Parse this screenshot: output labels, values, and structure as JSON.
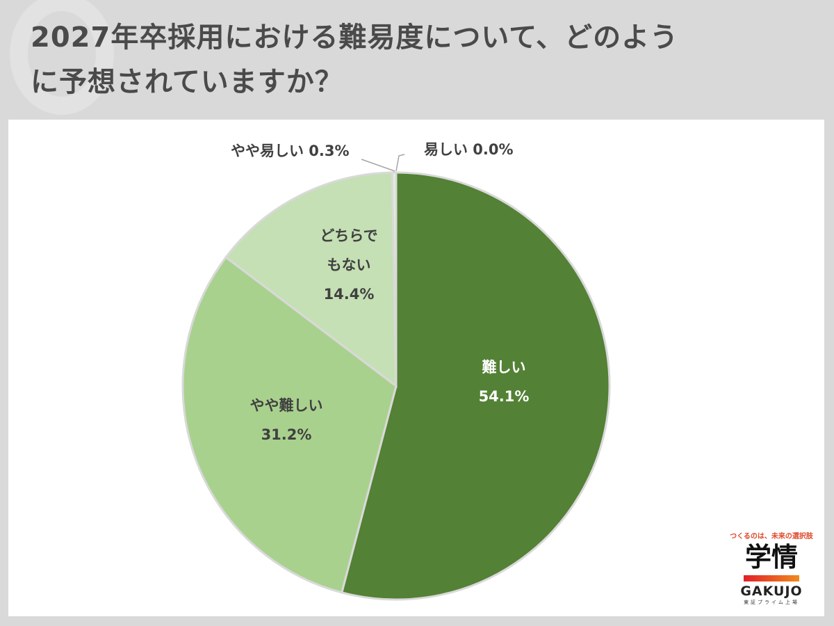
{
  "header": {
    "title_line1": "2027年卒採用における難易度について、どのよう",
    "title_line2": "に予想されていますか？"
  },
  "logo": {
    "tagline": "つくるのは、未来の選択肢",
    "kanji": "学情",
    "name": "GAKUJO",
    "sub": "東証プライム上場",
    "bar_colors": [
      "#e0202a",
      "#f08a1c"
    ]
  },
  "chart_data": {
    "type": "pie",
    "title": "2027年卒採用における難易度について、どのように予想されていますか？",
    "start_angle_deg": 0,
    "direction": "clockwise",
    "slices": [
      {
        "label": "難しい",
        "value": 54.1,
        "display": "54.1%",
        "color": "#538135"
      },
      {
        "label": "やや難しい",
        "value": 31.2,
        "display": "31.2%",
        "color": "#a9d18e"
      },
      {
        "label": "どちらでもない",
        "value": 14.4,
        "display": "14.4%",
        "color": "#c5e0b4"
      },
      {
        "label": "やや易しい",
        "value": 0.3,
        "display": "0.3%",
        "color": "#e2efda"
      },
      {
        "label": "易しい",
        "value": 0.0,
        "display": "0.0%",
        "color": "#385723"
      }
    ],
    "labels": {
      "hard": {
        "name": "難しい",
        "pct": "54.1%"
      },
      "somewhat_hard": {
        "name": "やや難しい",
        "pct": "31.2%"
      },
      "neutral": {
        "name1": "どちらで",
        "name2": "もない",
        "pct": "14.4%"
      },
      "somewhat_easy": {
        "text": "やや易しい 0.3%"
      },
      "easy": {
        "text": "易しい 0.0%"
      }
    },
    "slice_border_color": "#d9d9d9"
  }
}
